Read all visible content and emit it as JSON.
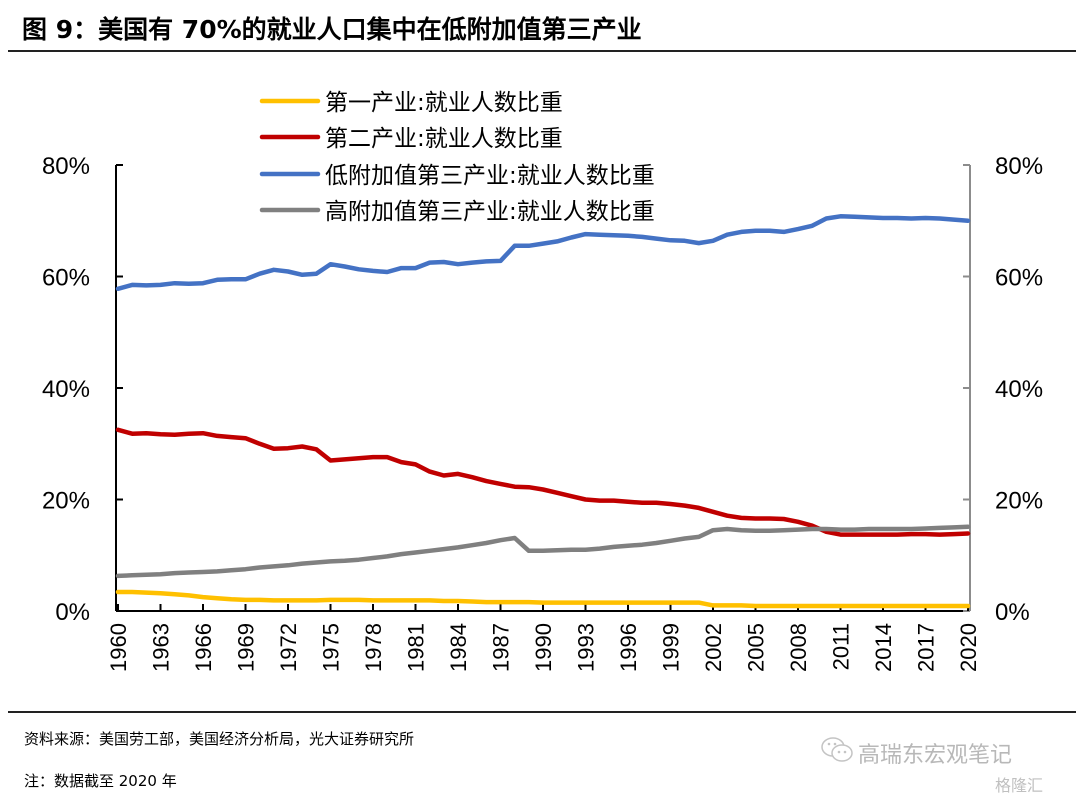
{
  "figure": {
    "title": "图 9：美国有 70%的就业人口集中在低附加值第三产业",
    "source": "资料来源：美国劳工部，美国经济分析局，光大证券研究所",
    "note": "注：数据截至 2020 年",
    "watermark": "高瑞东宏观笔记",
    "watermark_brand": "格隆汇"
  },
  "chart_data": {
    "type": "line",
    "title": "",
    "xlabel": "",
    "ylabel": "",
    "x": [
      1960,
      1961,
      1962,
      1963,
      1964,
      1965,
      1966,
      1967,
      1968,
      1969,
      1970,
      1971,
      1972,
      1973,
      1974,
      1975,
      1976,
      1977,
      1978,
      1979,
      1980,
      1981,
      1982,
      1983,
      1984,
      1985,
      1986,
      1987,
      1988,
      1989,
      1990,
      1991,
      1992,
      1993,
      1994,
      1995,
      1996,
      1997,
      1998,
      1999,
      2000,
      2001,
      2002,
      2003,
      2004,
      2005,
      2006,
      2007,
      2008,
      2009,
      2010,
      2011,
      2012,
      2013,
      2014,
      2015,
      2016,
      2017,
      2018,
      2019,
      2020
    ],
    "x_tick_labels": [
      "1960",
      "1963",
      "1966",
      "1969",
      "1972",
      "1975",
      "1978",
      "1981",
      "1984",
      "1987",
      "1990",
      "1993",
      "1996",
      "1999",
      "2002",
      "2005",
      "2008",
      "2011",
      "2014",
      "2017",
      "2020"
    ],
    "ylim": [
      0,
      80
    ],
    "y_ticks": [
      0,
      20,
      40,
      60,
      80
    ],
    "y_tick_labels": [
      "0%",
      "20%",
      "40%",
      "60%",
      "80%"
    ],
    "y2_tick_labels": [
      "0%",
      "20%",
      "40%",
      "60%",
      "80%"
    ],
    "grid": false,
    "legend_position": "top-center",
    "series": [
      {
        "name": "第一产业:就业人数比重",
        "color": "#FFC000",
        "values": [
          3.4,
          3.4,
          3.3,
          3.2,
          3.0,
          2.8,
          2.5,
          2.3,
          2.1,
          2.0,
          2.0,
          1.9,
          1.9,
          1.9,
          1.9,
          2.0,
          2.0,
          2.0,
          1.9,
          1.9,
          1.9,
          1.9,
          1.9,
          1.8,
          1.8,
          1.7,
          1.6,
          1.6,
          1.6,
          1.6,
          1.5,
          1.5,
          1.5,
          1.5,
          1.5,
          1.5,
          1.5,
          1.5,
          1.5,
          1.5,
          1.5,
          1.5,
          1.0,
          1.0,
          1.0,
          0.9,
          0.9,
          0.9,
          0.9,
          0.9,
          0.9,
          0.9,
          0.9,
          0.9,
          0.9,
          0.9,
          0.9,
          0.9,
          0.9,
          0.9,
          0.9
        ]
      },
      {
        "name": "第二产业:就业人数比重",
        "color": "#C00000",
        "values": [
          32.5,
          31.8,
          31.9,
          31.7,
          31.6,
          31.8,
          31.9,
          31.4,
          31.2,
          31.0,
          30.0,
          29.1,
          29.2,
          29.5,
          29.0,
          27.0,
          27.2,
          27.4,
          27.6,
          27.6,
          26.7,
          26.3,
          25.0,
          24.3,
          24.6,
          24.0,
          23.3,
          22.8,
          22.3,
          22.2,
          21.8,
          21.2,
          20.6,
          20.0,
          19.8,
          19.8,
          19.6,
          19.4,
          19.4,
          19.2,
          18.9,
          18.5,
          17.8,
          17.1,
          16.7,
          16.6,
          16.6,
          16.5,
          16.0,
          15.3,
          14.2,
          13.7,
          13.7,
          13.7,
          13.7,
          13.7,
          13.8,
          13.8,
          13.7,
          13.8,
          13.9
        ]
      },
      {
        "name": "低附加值第三产业:就业人数比重",
        "color": "#4472C4",
        "values": [
          57.8,
          58.5,
          58.4,
          58.5,
          58.8,
          58.7,
          58.8,
          59.4,
          59.5,
          59.5,
          60.5,
          61.2,
          60.9,
          60.3,
          60.5,
          62.2,
          61.8,
          61.3,
          61.0,
          60.8,
          61.5,
          61.5,
          62.5,
          62.6,
          62.2,
          62.5,
          62.7,
          62.8,
          65.5,
          65.5,
          65.9,
          66.3,
          67.0,
          67.6,
          67.5,
          67.4,
          67.3,
          67.1,
          66.8,
          66.5,
          66.4,
          66.0,
          66.4,
          67.5,
          68.0,
          68.2,
          68.2,
          68.0,
          68.5,
          69.1,
          70.4,
          70.8,
          70.7,
          70.6,
          70.5,
          70.5,
          70.4,
          70.5,
          70.4,
          70.2,
          70.0
        ]
      },
      {
        "name": "高附加值第三产业:就业人数比重",
        "color": "#808080",
        "values": [
          6.3,
          6.4,
          6.5,
          6.6,
          6.8,
          6.9,
          7.0,
          7.1,
          7.3,
          7.5,
          7.8,
          8.0,
          8.2,
          8.5,
          8.7,
          8.9,
          9.0,
          9.2,
          9.5,
          9.8,
          10.2,
          10.5,
          10.8,
          11.1,
          11.4,
          11.8,
          12.2,
          12.7,
          13.1,
          10.8,
          10.8,
          10.9,
          11.0,
          11.0,
          11.2,
          11.5,
          11.7,
          11.9,
          12.2,
          12.6,
          13.0,
          13.3,
          14.5,
          14.7,
          14.5,
          14.4,
          14.4,
          14.5,
          14.6,
          14.7,
          14.7,
          14.6,
          14.6,
          14.7,
          14.7,
          14.7,
          14.7,
          14.8,
          14.9,
          15.0,
          15.1
        ]
      }
    ]
  }
}
